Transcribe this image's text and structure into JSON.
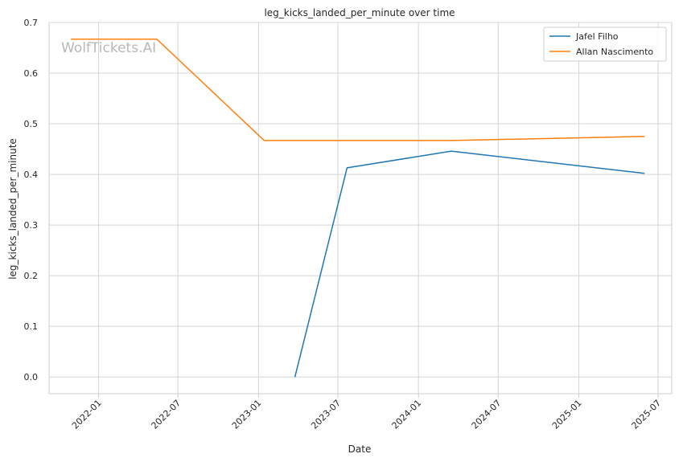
{
  "chart_data": {
    "type": "line",
    "title": "leg_kicks_landed_per_minute over time",
    "xlabel": "Date",
    "ylabel": "leg_kicks_landed_per_minute",
    "watermark": "WolfTickets.AI",
    "xlim": [
      "2021-09-10",
      "2025-08-01"
    ],
    "ylim": [
      -0.033,
      0.7
    ],
    "x_ticks": [
      "2022-01",
      "2022-07",
      "2023-01",
      "2023-07",
      "2024-01",
      "2024-07",
      "2025-01",
      "2025-07"
    ],
    "y_ticks": [
      0.0,
      0.1,
      0.2,
      0.3,
      0.4,
      0.5,
      0.6,
      0.7
    ],
    "y_tick_labels": [
      "0.0",
      "0.1",
      "0.2",
      "0.3",
      "0.4",
      "0.5",
      "0.6",
      "0.7"
    ],
    "grid": true,
    "legend": "top-right",
    "series": [
      {
        "name": "Jafel Filho",
        "color": "#1f77b4",
        "x": [
          "2023-03-25",
          "2023-07-22",
          "2024-03-16",
          "2025-05-31"
        ],
        "y": [
          0.0,
          0.413,
          0.446,
          0.402
        ]
      },
      {
        "name": "Allan Nascimento",
        "color": "#ff7f0e",
        "x": [
          "2021-10-30",
          "2022-05-14",
          "2023-01-14",
          "2024-03-16",
          "2025-05-31"
        ],
        "y": [
          0.667,
          0.667,
          0.467,
          0.467,
          0.475
        ]
      }
    ]
  }
}
